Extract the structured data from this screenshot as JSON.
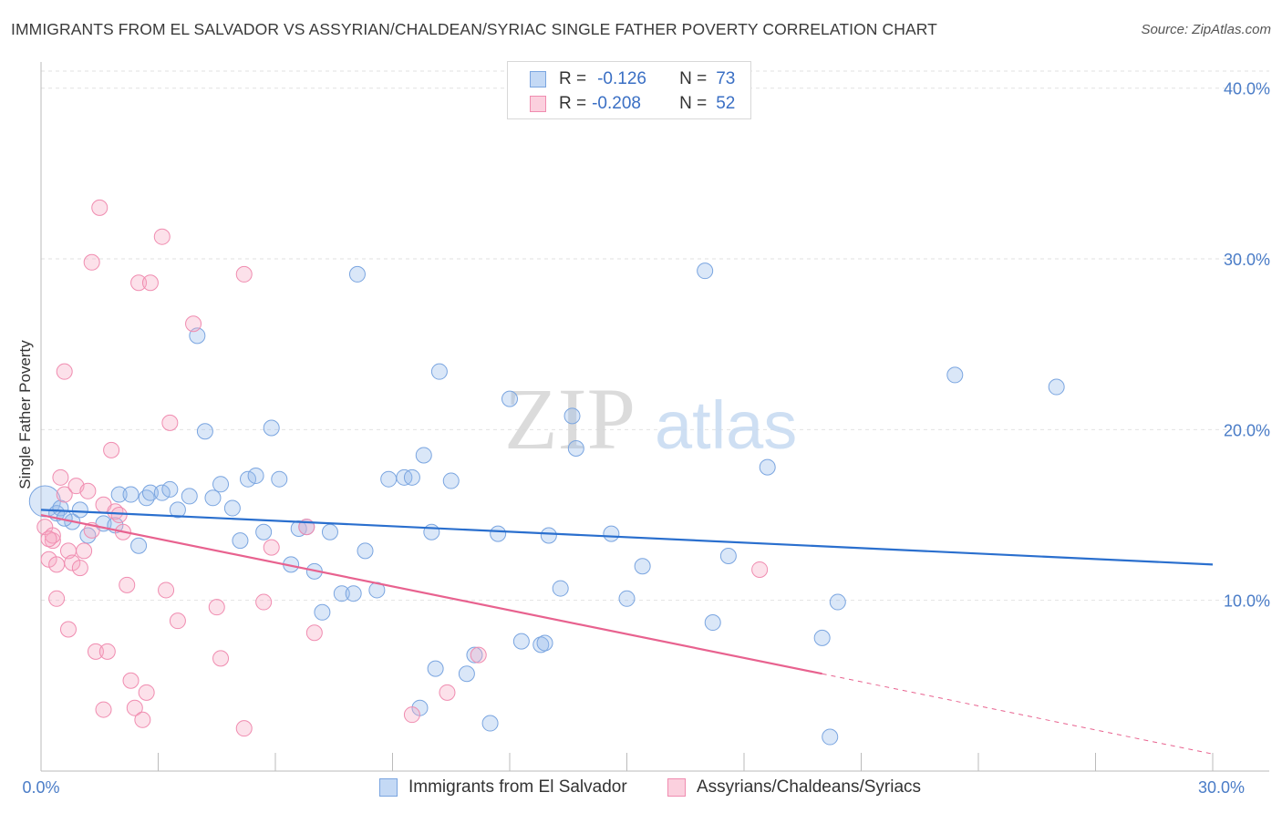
{
  "title": "IMMIGRANTS FROM EL SALVADOR VS ASSYRIAN/CHALDEAN/SYRIAC SINGLE FATHER POVERTY CORRELATION CHART",
  "source": "Source: ZipAtlas.com",
  "legend": {
    "series1": {
      "r_label": "R =",
      "r_value": "-0.126",
      "n_label": "N =",
      "n_value": "73"
    },
    "series2": {
      "r_label": "R =",
      "r_value": "-0.208",
      "n_label": "N =",
      "n_value": "52"
    }
  },
  "watermark": {
    "zip": "ZIP",
    "atlas": "atlas"
  },
  "colors": {
    "blue": "#6fa0e0",
    "blue_line": "#2a6fce",
    "pink": "#f08cb0",
    "pink_line": "#e8628f",
    "tick": "#4a7cc7"
  },
  "chart_data": {
    "type": "scatter",
    "title": "IMMIGRANTS FROM EL SALVADOR VS ASSYRIAN/CHALDEAN/SYRIAC SINGLE FATHER POVERTY CORRELATION CHART",
    "xlabel": "",
    "ylabel": "Single Father Poverty",
    "xlim": [
      0,
      30
    ],
    "ylim": [
      0,
      41
    ],
    "x_tick_labels": [
      "0.0%",
      "30.0%"
    ],
    "y_ticks": [
      10,
      20,
      30,
      40
    ],
    "y_tick_labels": [
      "10.0%",
      "20.0%",
      "30.0%",
      "40.0%"
    ],
    "grid": true,
    "legend_position": "top-center",
    "series": [
      {
        "name": "Immigrants from El Salvador",
        "color": "#6fa0e0",
        "trend": {
          "x0": 0,
          "y0": 15.3,
          "x1": 30,
          "y1": 12.1
        },
        "points": [
          [
            0.1,
            15.8
          ],
          [
            0.4,
            15.1
          ],
          [
            0.5,
            15.4
          ],
          [
            0.8,
            14.6
          ],
          [
            1.0,
            15.3
          ],
          [
            1.2,
            13.8
          ],
          [
            1.6,
            14.5
          ],
          [
            1.9,
            14.4
          ],
          [
            2.0,
            16.2
          ],
          [
            2.3,
            16.2
          ],
          [
            2.5,
            13.2
          ],
          [
            2.7,
            16.0
          ],
          [
            2.8,
            16.3
          ],
          [
            3.1,
            16.3
          ],
          [
            3.3,
            16.5
          ],
          [
            3.5,
            15.3
          ],
          [
            3.8,
            16.1
          ],
          [
            4.0,
            25.5
          ],
          [
            4.2,
            19.9
          ],
          [
            4.4,
            16.0
          ],
          [
            4.6,
            16.8
          ],
          [
            4.9,
            15.4
          ],
          [
            5.1,
            13.5
          ],
          [
            5.3,
            17.1
          ],
          [
            5.5,
            17.3
          ],
          [
            5.7,
            14.0
          ],
          [
            5.9,
            20.1
          ],
          [
            6.1,
            17.1
          ],
          [
            6.4,
            12.1
          ],
          [
            6.6,
            14.2
          ],
          [
            6.8,
            14.3
          ],
          [
            7.0,
            11.7
          ],
          [
            7.2,
            9.3
          ],
          [
            7.4,
            14.0
          ],
          [
            7.7,
            10.4
          ],
          [
            8.0,
            10.4
          ],
          [
            8.1,
            29.1
          ],
          [
            8.3,
            12.9
          ],
          [
            8.6,
            10.6
          ],
          [
            8.9,
            17.1
          ],
          [
            9.3,
            17.2
          ],
          [
            9.5,
            17.2
          ],
          [
            9.8,
            18.5
          ],
          [
            10.0,
            14.0
          ],
          [
            10.2,
            23.4
          ],
          [
            10.5,
            17.0
          ],
          [
            10.1,
            6.0
          ],
          [
            9.7,
            3.7
          ],
          [
            10.9,
            5.7
          ],
          [
            11.1,
            6.8
          ],
          [
            11.5,
            2.8
          ],
          [
            11.7,
            13.9
          ],
          [
            12.0,
            21.8
          ],
          [
            12.3,
            7.6
          ],
          [
            12.8,
            7.4
          ],
          [
            12.9,
            7.5
          ],
          [
            13.0,
            13.8
          ],
          [
            13.3,
            10.7
          ],
          [
            13.6,
            20.8
          ],
          [
            13.7,
            18.9
          ],
          [
            14.6,
            13.9
          ],
          [
            15.0,
            10.1
          ],
          [
            15.4,
            12.0
          ],
          [
            17.0,
            29.3
          ],
          [
            17.2,
            8.7
          ],
          [
            17.6,
            12.6
          ],
          [
            18.6,
            17.8
          ],
          [
            20.0,
            7.8
          ],
          [
            20.2,
            2.0
          ],
          [
            20.4,
            9.9
          ],
          [
            23.4,
            23.2
          ],
          [
            26.0,
            22.5
          ],
          [
            0.6,
            14.8
          ]
        ]
      },
      {
        "name": "Assyrians/Chaldeans/Syriacs",
        "color": "#f08cb0",
        "trend": {
          "x0": 0,
          "y0": 15.0,
          "x1": 20.0,
          "y1": 5.7,
          "dash_to_x": 30,
          "dash_to_y": 1.0
        },
        "points": [
          [
            0.1,
            14.3
          ],
          [
            0.2,
            12.4
          ],
          [
            0.3,
            13.5
          ],
          [
            0.3,
            13.8
          ],
          [
            0.4,
            12.1
          ],
          [
            0.4,
            10.1
          ],
          [
            0.5,
            17.2
          ],
          [
            0.6,
            16.2
          ],
          [
            0.6,
            23.4
          ],
          [
            0.7,
            8.3
          ],
          [
            0.7,
            12.9
          ],
          [
            0.8,
            12.2
          ],
          [
            0.9,
            16.7
          ],
          [
            1.0,
            11.9
          ],
          [
            1.1,
            12.9
          ],
          [
            1.2,
            16.4
          ],
          [
            1.3,
            29.8
          ],
          [
            1.3,
            14.1
          ],
          [
            1.4,
            7.0
          ],
          [
            1.6,
            15.6
          ],
          [
            1.5,
            33.0
          ],
          [
            1.6,
            3.6
          ],
          [
            1.7,
            7.0
          ],
          [
            1.8,
            18.8
          ],
          [
            1.9,
            15.2
          ],
          [
            2.0,
            15.0
          ],
          [
            2.1,
            14.0
          ],
          [
            2.2,
            10.9
          ],
          [
            2.3,
            5.3
          ],
          [
            2.4,
            3.7
          ],
          [
            2.5,
            28.6
          ],
          [
            2.6,
            3.0
          ],
          [
            2.7,
            4.6
          ],
          [
            2.8,
            28.6
          ],
          [
            3.1,
            31.3
          ],
          [
            3.2,
            10.6
          ],
          [
            3.3,
            20.4
          ],
          [
            3.5,
            8.8
          ],
          [
            3.9,
            26.2
          ],
          [
            4.5,
            9.6
          ],
          [
            4.6,
            6.6
          ],
          [
            5.2,
            29.1
          ],
          [
            5.2,
            2.5
          ],
          [
            5.7,
            9.9
          ],
          [
            5.9,
            13.1
          ],
          [
            6.8,
            14.3
          ],
          [
            7.0,
            8.1
          ],
          [
            9.5,
            3.3
          ],
          [
            10.4,
            4.6
          ],
          [
            11.2,
            6.8
          ],
          [
            18.4,
            11.8
          ],
          [
            0.2,
            13.6
          ]
        ]
      }
    ]
  },
  "bottom_legend": {
    "series1": "Immigrants from El Salvador",
    "series2": "Assyrians/Chaldeans/Syriacs"
  }
}
